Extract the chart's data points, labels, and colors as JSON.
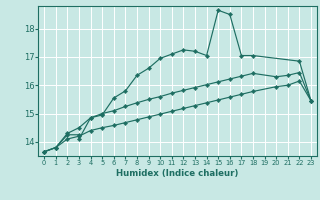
{
  "xlabel": "Humidex (Indice chaleur)",
  "bg_color": "#c8e8e4",
  "grid_color": "#ffffff",
  "line_color": "#1e6e62",
  "xlim": [
    -0.5,
    23.5
  ],
  "ylim": [
    13.5,
    18.8
  ],
  "xticks": [
    0,
    1,
    2,
    3,
    4,
    5,
    6,
    7,
    8,
    9,
    10,
    11,
    12,
    13,
    14,
    15,
    16,
    17,
    18,
    19,
    20,
    21,
    22,
    23
  ],
  "yticks": [
    14,
    15,
    16,
    17,
    18
  ],
  "line1_x": [
    0,
    1,
    2,
    3,
    3,
    4,
    5,
    6,
    7,
    8,
    9,
    10,
    11,
    12,
    13,
    14,
    15,
    16,
    17,
    18,
    22,
    23
  ],
  "line1_y": [
    13.65,
    13.8,
    14.25,
    14.25,
    14.1,
    14.85,
    14.95,
    15.55,
    15.8,
    16.35,
    16.6,
    16.95,
    17.1,
    17.25,
    17.2,
    17.05,
    18.65,
    18.5,
    17.05,
    17.05,
    16.85,
    15.45
  ],
  "line2_x": [
    0,
    1,
    2,
    3,
    4,
    5,
    6,
    7,
    8,
    9,
    10,
    11,
    12,
    13,
    14,
    15,
    16,
    17,
    18,
    20,
    21,
    22,
    23
  ],
  "line2_y": [
    13.65,
    13.8,
    14.3,
    14.5,
    14.85,
    15.0,
    15.1,
    15.25,
    15.38,
    15.5,
    15.6,
    15.72,
    15.82,
    15.92,
    16.02,
    16.12,
    16.22,
    16.32,
    16.42,
    16.3,
    16.35,
    16.45,
    15.45
  ],
  "line3_x": [
    0,
    1,
    2,
    3,
    4,
    5,
    6,
    7,
    8,
    9,
    10,
    11,
    12,
    13,
    14,
    15,
    16,
    17,
    18,
    20,
    21,
    22,
    23
  ],
  "line3_y": [
    13.65,
    13.8,
    14.1,
    14.2,
    14.4,
    14.5,
    14.58,
    14.68,
    14.78,
    14.88,
    14.98,
    15.08,
    15.18,
    15.28,
    15.38,
    15.48,
    15.58,
    15.68,
    15.78,
    15.95,
    16.0,
    16.15,
    15.45
  ]
}
